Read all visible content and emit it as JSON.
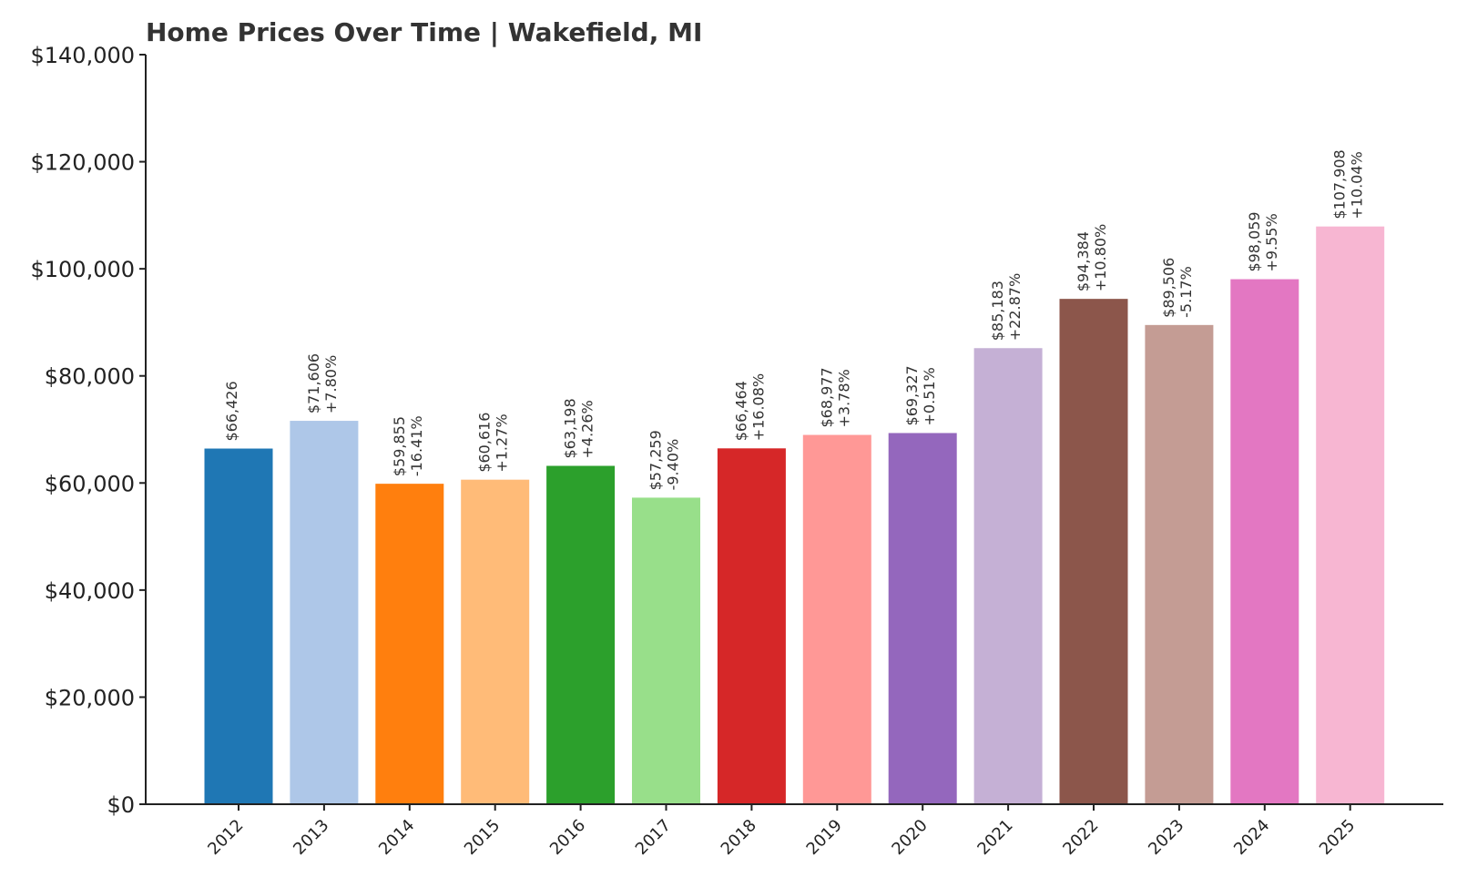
{
  "chart_data": {
    "type": "bar",
    "title": "Home Prices Over Time | Wakefield, MI",
    "xlabel": "",
    "ylabel": "",
    "ylim": [
      0,
      140000
    ],
    "grid": false,
    "legend": "none",
    "categories": [
      "2012",
      "2013",
      "2014",
      "2015",
      "2016",
      "2017",
      "2018",
      "2019",
      "2020",
      "2021",
      "2022",
      "2023",
      "2024",
      "2025"
    ],
    "values": [
      66426,
      71606,
      59855,
      60616,
      63198,
      57259,
      66464,
      68977,
      69327,
      85183,
      94384,
      89506,
      98059,
      107908
    ],
    "value_labels": [
      "$66,426",
      "$71,606",
      "$59,855",
      "$60,616",
      "$63,198",
      "$57,259",
      "$66,464",
      "$68,977",
      "$69,327",
      "$85,183",
      "$94,384",
      "$89,506",
      "$98,059",
      "$107,908"
    ],
    "change_labels": [
      "",
      "+7.80%",
      "-16.41%",
      "+1.27%",
      "+4.26%",
      "-9.40%",
      "+16.08%",
      "+3.78%",
      "+0.51%",
      "+22.87%",
      "+10.80%",
      "-5.17%",
      "+9.55%",
      "+10.04%"
    ],
    "y_ticks": [
      0,
      20000,
      40000,
      60000,
      80000,
      100000,
      120000,
      140000
    ],
    "y_tick_labels": [
      "$0",
      "$20,000",
      "$40,000",
      "$60,000",
      "$80,000",
      "$100,000",
      "$120,000",
      "$140,000"
    ],
    "colors": [
      "#1f77b4",
      "#aec7e8",
      "#ff7f0e",
      "#ffbb78",
      "#2ca02c",
      "#98df8a",
      "#d62728",
      "#ff9896",
      "#9467bd",
      "#c5b0d5",
      "#8c564b",
      "#c49c94",
      "#e377c2",
      "#f7b6d2"
    ]
  }
}
